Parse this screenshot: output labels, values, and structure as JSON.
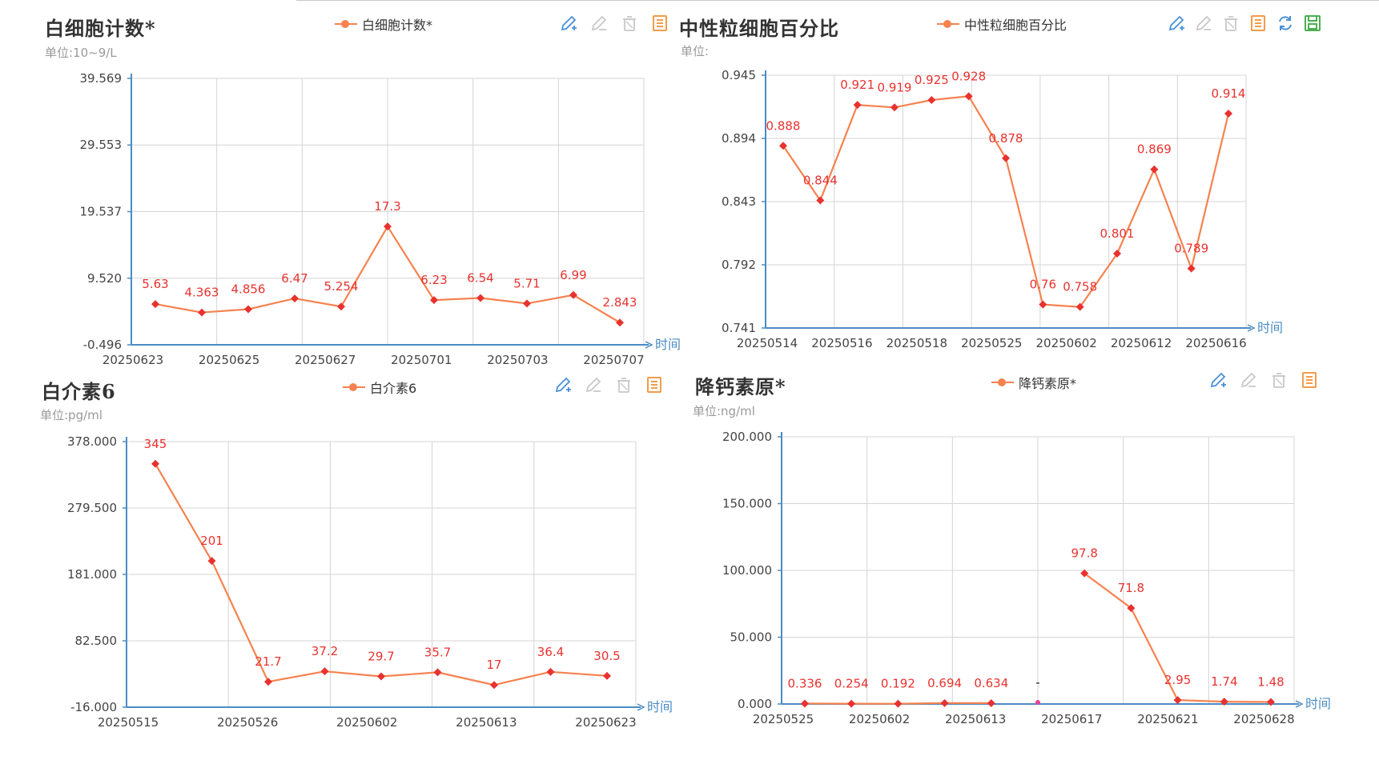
{
  "colors": {
    "line": "#f6824f",
    "marker": "#e8322f",
    "label": "#e8322f",
    "axis": "#4a8cc4",
    "grid": "#d4d4d4",
    "tick": "#444444",
    "axis_name": "#4a8cc4",
    "icon_blue": "#4a90d9",
    "icon_gray": "#c8c8c8",
    "icon_orange": "#f39c4a",
    "icon_green": "#4caf50"
  },
  "toolbar_labels": {
    "time": "时间"
  },
  "chart_data": [
    {
      "type": "line",
      "title": "白细胞计数*",
      "unit": "单位:10~9/L",
      "legend": "白细胞计数*",
      "xlabel": "时间",
      "ylim": [
        -0.496,
        39.569
      ],
      "yticks": [
        "39.569",
        "29.553",
        "19.537",
        "9.520",
        "-0.496"
      ],
      "ytick_values": [
        39.569,
        29.553,
        19.537,
        9.52,
        -0.496
      ],
      "categories": [
        "20250623",
        "",
        "20250625",
        "",
        "20250627",
        "",
        "20250701",
        "",
        "20250703",
        "",
        "20250707"
      ],
      "x_labels_shown": [
        "20250623",
        "20250625",
        "20250627",
        "20250701",
        "20250703",
        "20250707"
      ],
      "series": [
        {
          "name": "白细胞计数*",
          "values": [
            5.63,
            4.363,
            4.856,
            6.47,
            5.254,
            17.3,
            6.23,
            6.54,
            5.71,
            6.99,
            2.843
          ],
          "labels": [
            "5.63",
            "4.363",
            "4.856",
            "6.47",
            "5.254",
            "17.3",
            "6.23",
            "6.54",
            "5.71",
            "6.99",
            "2.843"
          ]
        }
      ],
      "toolbar": [
        "edit-icon",
        "edit-disabled-icon",
        "delete-icon",
        "notes-icon"
      ]
    },
    {
      "type": "line",
      "title": "中性粒细胞百分比",
      "unit": "单位:",
      "legend": "中性粒细胞百分比",
      "xlabel": "时间",
      "ylim": [
        0.741,
        0.945
      ],
      "yticks": [
        "0.945",
        "0.894",
        "0.843",
        "0.792",
        "0.741"
      ],
      "ytick_values": [
        0.945,
        0.894,
        0.843,
        0.792,
        0.741
      ],
      "x_labels_shown": [
        "20250514",
        "20250516",
        "20250518",
        "20250525",
        "20250602",
        "20250612",
        "20250616"
      ],
      "series": [
        {
          "name": "中性粒细胞百分比",
          "values": [
            0.888,
            0.844,
            0.921,
            0.919,
            0.925,
            0.928,
            0.878,
            0.76,
            0.758,
            0.801,
            0.869,
            0.789,
            0.914
          ],
          "labels": [
            "0.888",
            "0.844",
            "0.921",
            "0.919",
            "0.925",
            "0.928",
            "0.878",
            "0.76",
            "0.758",
            "0.801",
            "0.869",
            "0.789",
            "0.914"
          ]
        }
      ],
      "toolbar": [
        "edit-icon",
        "edit-disabled-icon",
        "delete-icon",
        "notes-icon",
        "refresh-icon",
        "save-icon"
      ]
    },
    {
      "type": "line",
      "title": "白介素6",
      "unit": "单位:pg/ml",
      "legend": "白介素6",
      "xlabel": "时间",
      "ylim": [
        -16,
        378
      ],
      "yticks": [
        "378.000",
        "279.500",
        "181.000",
        "82.500",
        "-16.000"
      ],
      "ytick_values": [
        378,
        279.5,
        181,
        82.5,
        -16
      ],
      "x_labels_shown": [
        "20250515",
        "20250526",
        "20250602",
        "20250613",
        "20250623"
      ],
      "series": [
        {
          "name": "白介素6",
          "values": [
            345,
            201,
            21.7,
            37.2,
            29.7,
            35.7,
            17,
            36.4,
            30.5
          ],
          "labels": [
            "345",
            "201",
            "21.7",
            "37.2",
            "29.7",
            "35.7",
            "17",
            "36.4",
            "30.5"
          ]
        }
      ],
      "toolbar": [
        "edit-icon",
        "edit-disabled-icon",
        "delete-icon",
        "notes-icon"
      ]
    },
    {
      "type": "line",
      "title": "降钙素原*",
      "unit": "单位:ng/ml",
      "legend": "降钙素原*",
      "xlabel": "时间",
      "ylim": [
        0,
        200
      ],
      "yticks": [
        "200.000",
        "150.000",
        "100.000",
        "50.000",
        "0.000"
      ],
      "ytick_values": [
        200,
        150,
        100,
        50,
        0
      ],
      "x_labels_shown": [
        "20250525",
        "20250602",
        "20250613",
        "20250617",
        "20250621",
        "20250628"
      ],
      "series": [
        {
          "name": "降钙素原*",
          "values": [
            0.336,
            0.254,
            0.192,
            0.694,
            0.634,
            null,
            97.8,
            71.8,
            2.95,
            1.74,
            1.48
          ],
          "labels": [
            "0.336",
            "0.254",
            "0.192",
            "0.694",
            "0.634",
            "-",
            "97.8",
            "71.8",
            "2.95",
            "1.74",
            "1.48"
          ]
        }
      ],
      "toolbar": [
        "edit-icon",
        "edit-disabled-icon",
        "delete-icon",
        "notes-icon"
      ]
    }
  ]
}
